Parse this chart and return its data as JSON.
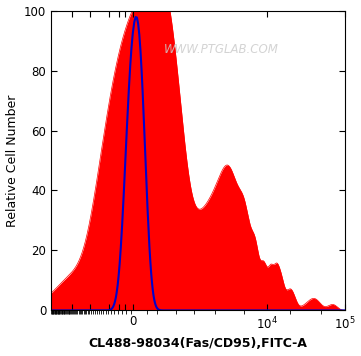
{
  "title": "",
  "xlabel": "CL488-98034(Fas/CD95),FITC-A",
  "ylabel": "Relative Cell Number",
  "watermark": "WWW.PTGLAB.COM",
  "ylim": [
    0,
    100
  ],
  "yticks": [
    0,
    20,
    40,
    60,
    80,
    100
  ],
  "background_color": "#ffffff",
  "plot_bg_color": "#ffffff",
  "red_fill_color": "#ff0000",
  "blue_line_color": "#0000cc",
  "xlabel_fontsize": 9,
  "ylabel_fontsize": 9,
  "tick_fontsize": 8.5,
  "xlabel_fontweight": "bold"
}
